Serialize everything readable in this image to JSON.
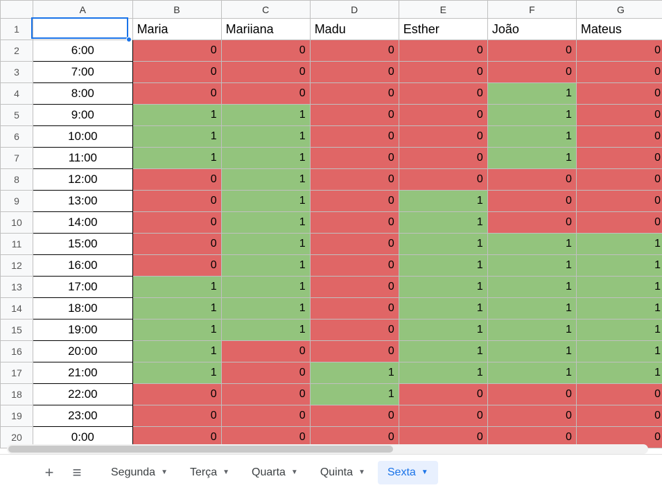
{
  "colors": {
    "green": "#93c47d",
    "red": "#e06666",
    "header_bg": "#f8f9fa",
    "grid_border": "#c0c0c0",
    "data_border": "#000000",
    "selection": "#1a73e8",
    "tab_active_bg": "#e8f0fe",
    "tab_active_fg": "#1a73e8"
  },
  "column_letters": [
    "A",
    "B",
    "C",
    "D",
    "E",
    "F",
    "G"
  ],
  "row_numbers": [
    1,
    2,
    3,
    4,
    5,
    6,
    7,
    8,
    9,
    10,
    11,
    12,
    13,
    14,
    15,
    16,
    17,
    18,
    19,
    20
  ],
  "people": [
    "Maria",
    "Mariiana",
    "Madu",
    "Esther",
    "João",
    "Mateus"
  ],
  "times": [
    "6:00",
    "7:00",
    "8:00",
    "9:00",
    "10:00",
    "11:00",
    "12:00",
    "13:00",
    "14:00",
    "15:00",
    "16:00",
    "17:00",
    "18:00",
    "19:00",
    "20:00",
    "21:00",
    "22:00",
    "23:00",
    "0:00"
  ],
  "values": [
    [
      0,
      0,
      0,
      0,
      0,
      0
    ],
    [
      0,
      0,
      0,
      0,
      0,
      0
    ],
    [
      0,
      0,
      0,
      0,
      1,
      0
    ],
    [
      1,
      1,
      0,
      0,
      1,
      0
    ],
    [
      1,
      1,
      0,
      0,
      1,
      0
    ],
    [
      1,
      1,
      0,
      0,
      1,
      0
    ],
    [
      0,
      1,
      0,
      0,
      0,
      0
    ],
    [
      0,
      1,
      0,
      1,
      0,
      0
    ],
    [
      0,
      1,
      0,
      1,
      0,
      0
    ],
    [
      0,
      1,
      0,
      1,
      1,
      1
    ],
    [
      0,
      1,
      0,
      1,
      1,
      1
    ],
    [
      1,
      1,
      0,
      1,
      1,
      1
    ],
    [
      1,
      1,
      0,
      1,
      1,
      1
    ],
    [
      1,
      1,
      0,
      1,
      1,
      1
    ],
    [
      1,
      0,
      0,
      1,
      1,
      1
    ],
    [
      1,
      0,
      1,
      1,
      1,
      1
    ],
    [
      0,
      0,
      1,
      0,
      0,
      0
    ],
    [
      0,
      0,
      0,
      0,
      0,
      0
    ],
    [
      0,
      0,
      0,
      0,
      0,
      0
    ]
  ],
  "active_cell": {
    "row": 1,
    "col": "A"
  },
  "tabs": {
    "items": [
      "Segunda",
      "Terça",
      "Quarta",
      "Quinta",
      "Sexta"
    ],
    "active_index": 4
  }
}
